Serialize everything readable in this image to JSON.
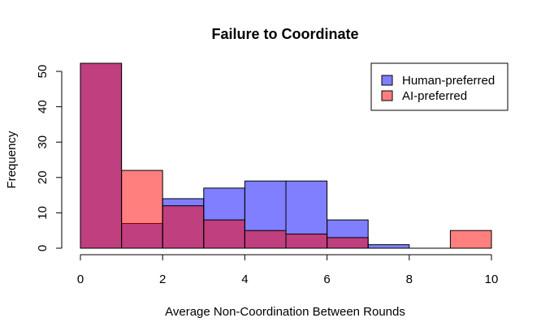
{
  "chart_data": {
    "type": "histogram",
    "title": "Failure to Coordinate",
    "xlabel": "Average Non-Coordination Between Rounds",
    "ylabel": "Frequency",
    "xlim": [
      0,
      10
    ],
    "ylim": [
      0,
      52
    ],
    "x_ticks": [
      "0",
      "2",
      "4",
      "6",
      "8",
      "10"
    ],
    "y_ticks": [
      "0",
      "10",
      "20",
      "30",
      "40",
      "50"
    ],
    "bins": [
      {
        "start": 0,
        "end": 1
      },
      {
        "start": 1,
        "end": 2
      },
      {
        "start": 2,
        "end": 3
      },
      {
        "start": 3,
        "end": 4
      },
      {
        "start": 4,
        "end": 5
      },
      {
        "start": 5,
        "end": 6
      },
      {
        "start": 6,
        "end": 7
      },
      {
        "start": 7,
        "end": 8
      },
      {
        "start": 8,
        "end": 9
      },
      {
        "start": 9,
        "end": 10
      }
    ],
    "series": [
      {
        "name": "Human-preferred",
        "color": "#7f7fff",
        "values": [
          53,
          7,
          14,
          17,
          19,
          19,
          8,
          1,
          0,
          0
        ]
      },
      {
        "name": "AI-preferred",
        "color": "#ff7f7f",
        "values": [
          53,
          22,
          12,
          8,
          5,
          4,
          3,
          0,
          0,
          5
        ]
      }
    ],
    "overlap_color": "#bf3f7f",
    "legend_position": "top-right",
    "grid": false
  }
}
